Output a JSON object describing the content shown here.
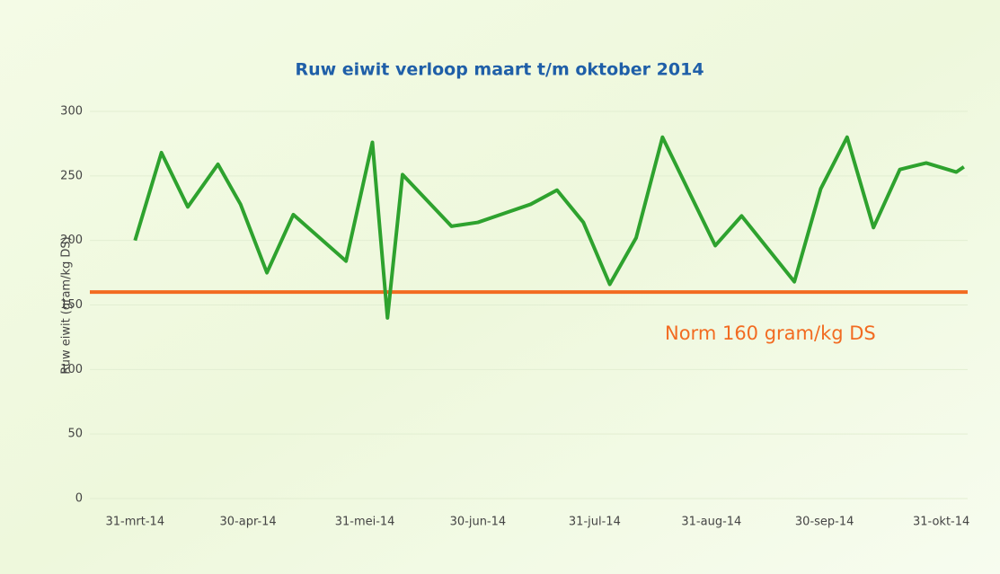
{
  "chart_data": {
    "type": "line",
    "title": "Ruw eiwit verloop maart t/m oktober 2014",
    "y_label": "Ruw eiwit (gram/kg DS)",
    "x": [
      "2014-03-31",
      "2014-04-07",
      "2014-04-14",
      "2014-04-22",
      "2014-04-28",
      "2014-05-05",
      "2014-05-12",
      "2014-05-26",
      "2014-06-02",
      "2014-06-06",
      "2014-06-10",
      "2014-06-23",
      "2014-06-30",
      "2014-07-07",
      "2014-07-14",
      "2014-07-21",
      "2014-07-28",
      "2014-08-04",
      "2014-08-11",
      "2014-08-18",
      "2014-08-25",
      "2014-09-01",
      "2014-09-08",
      "2014-09-22",
      "2014-09-29",
      "2014-10-06",
      "2014-10-13",
      "2014-10-20",
      "2014-10-27",
      "2014-11-04",
      "2014-11-06"
    ],
    "series": [
      {
        "name": "Ruw eiwit",
        "color": "#2ea22e",
        "values": [
          200,
          268,
          226,
          259,
          228,
          175,
          220,
          184,
          276,
          140,
          251,
          211,
          214,
          221,
          228,
          239,
          214,
          166,
          202,
          280,
          238,
          196,
          219,
          168,
          240,
          280,
          210,
          255,
          260,
          253,
          257
        ]
      }
    ],
    "norm": {
      "value": 160,
      "label": "Norm 160 gram/kg DS",
      "color": "#f26b21"
    },
    "xlim": [
      "2014-03-19",
      "2014-11-07"
    ],
    "xticks": [
      {
        "value": "2014-03-31",
        "label": "31-mrt-14"
      },
      {
        "value": "2014-04-30",
        "label": "30-apr-14"
      },
      {
        "value": "2014-05-31",
        "label": "31-mei-14"
      },
      {
        "value": "2014-06-30",
        "label": "30-jun-14"
      },
      {
        "value": "2014-07-31",
        "label": "31-jul-14"
      },
      {
        "value": "2014-08-31",
        "label": "31-aug-14"
      },
      {
        "value": "2014-09-30",
        "label": "30-sep-14"
      },
      {
        "value": "2014-10-31",
        "label": "31-okt-14"
      }
    ],
    "ylim": [
      0,
      300
    ],
    "yticks": [
      0,
      50,
      100,
      150,
      200,
      250,
      300
    ],
    "grid": true
  }
}
